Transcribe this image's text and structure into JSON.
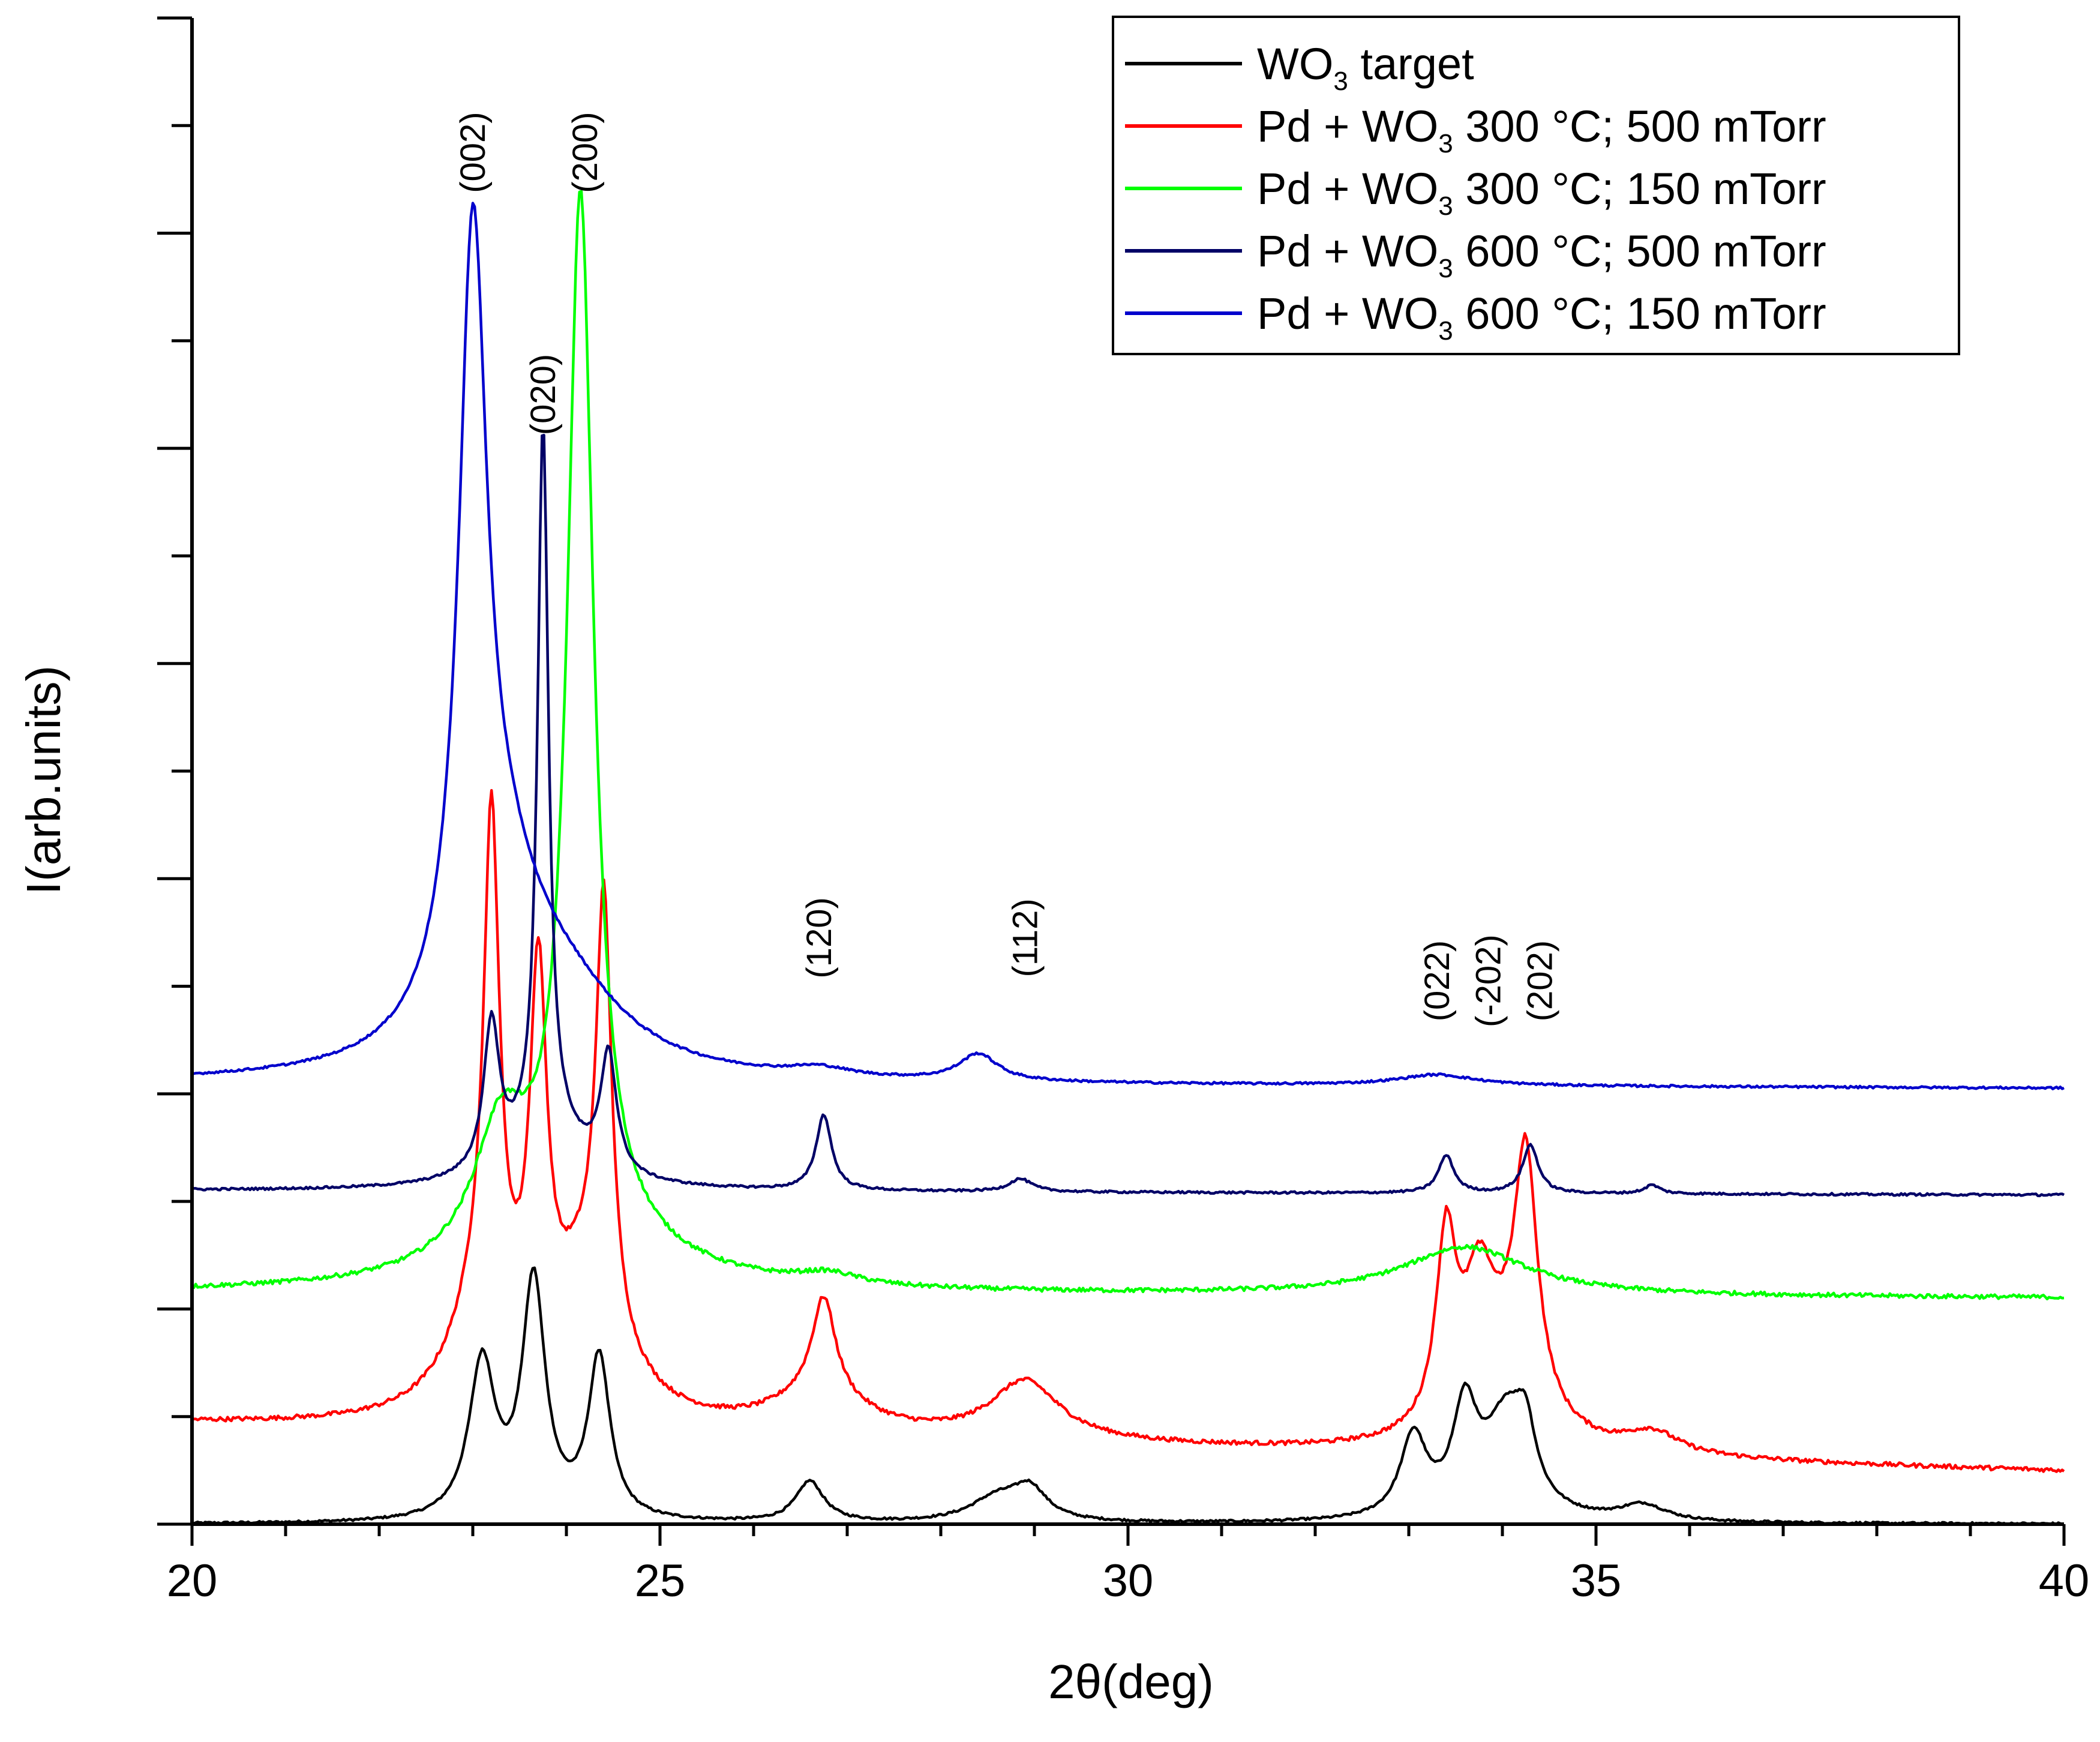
{
  "chart_data": {
    "type": "line",
    "title": "",
    "xlabel": "2θ(deg)",
    "ylabel": "I(arb.units)",
    "xlim": [
      20,
      40
    ],
    "ylim": [
      0,
      14
    ],
    "x_ticks": [
      "20",
      "25",
      "30",
      "35",
      "40"
    ],
    "y_ticks_labeled": false,
    "grid": false,
    "legend_position": "top-right",
    "series": [
      {
        "name": "WO3 target",
        "legend_parts": [
          "WO",
          "3",
          " target"
        ],
        "color": "#000000",
        "baseline": 0.0,
        "peaks": [
          {
            "x": 23.1,
            "h": 1.45,
            "w": 0.17
          },
          {
            "x": 23.65,
            "h": 2.2,
            "w": 0.15
          },
          {
            "x": 24.35,
            "h": 1.5,
            "w": 0.14
          },
          {
            "x": 26.6,
            "h": 0.38,
            "w": 0.18
          },
          {
            "x": 28.6,
            "h": 0.22,
            "w": 0.35
          },
          {
            "x": 28.95,
            "h": 0.28,
            "w": 0.22
          },
          {
            "x": 33.05,
            "h": 0.75,
            "w": 0.17
          },
          {
            "x": 33.6,
            "h": 0.95,
            "w": 0.16
          },
          {
            "x": 34.05,
            "h": 0.95,
            "w": 0.28
          },
          {
            "x": 34.25,
            "h": 0.5,
            "w": 0.12
          },
          {
            "x": 35.5,
            "h": 0.15,
            "w": 0.3
          }
        ]
      },
      {
        "name": "Pd + WO3 300 °C; 500 mTorr",
        "legend_parts": [
          "Pd + WO",
          "3",
          " 300 °C; 500 mTorr"
        ],
        "color": "#ff0000",
        "baseline": 0.93,
        "slope": -0.022,
        "peaks": [
          {
            "x": 23.2,
            "h": 4.6,
            "w": 0.1
          },
          {
            "x": 23.1,
            "h": 1.0,
            "w": 0.4
          },
          {
            "x": 23.7,
            "h": 3.5,
            "w": 0.11
          },
          {
            "x": 24.4,
            "h": 3.9,
            "w": 0.1
          },
          {
            "x": 24.2,
            "h": 1.2,
            "w": 0.45
          },
          {
            "x": 26.75,
            "h": 0.9,
            "w": 0.15
          },
          {
            "x": 26.7,
            "h": 0.35,
            "w": 0.6
          },
          {
            "x": 28.9,
            "h": 0.55,
            "w": 0.45
          },
          {
            "x": 33.4,
            "h": 1.7,
            "w": 0.13
          },
          {
            "x": 33.75,
            "h": 1.1,
            "w": 0.2
          },
          {
            "x": 34.25,
            "h": 2.3,
            "w": 0.15
          },
          {
            "x": 34.0,
            "h": 0.6,
            "w": 0.5
          },
          {
            "x": 35.6,
            "h": 0.2,
            "w": 0.35
          }
        ]
      },
      {
        "name": "Pd + WO3 300 °C; 150 mTorr",
        "legend_parts": [
          "Pd + WO",
          "3",
          " 300 °C; 150 mTorr"
        ],
        "color": "#00ff00",
        "baseline": 2.15,
        "slope": -0.0025,
        "peaks": [
          {
            "x": 24.15,
            "h": 9.6,
            "w": 0.17
          },
          {
            "x": 23.3,
            "h": 1.15,
            "w": 0.35
          },
          {
            "x": 24.1,
            "h": 0.5,
            "w": 1.1
          },
          {
            "x": 26.8,
            "h": 0.1,
            "w": 0.4
          },
          {
            "x": 33.6,
            "h": 0.45,
            "w": 0.8
          }
        ]
      },
      {
        "name": "Pd + WO3 600 °C; 500 mTorr",
        "legend_parts": [
          "Pd + WO",
          "3",
          " 600 °C; 500 mTorr"
        ],
        "color": "#000066",
        "baseline": 3.1,
        "slope": -0.002,
        "peaks": [
          {
            "x": 23.75,
            "h": 6.6,
            "w": 0.07
          },
          {
            "x": 23.2,
            "h": 1.35,
            "w": 0.1
          },
          {
            "x": 24.45,
            "h": 1.1,
            "w": 0.1
          },
          {
            "x": 23.8,
            "h": 0.5,
            "w": 0.5
          },
          {
            "x": 26.75,
            "h": 0.7,
            "w": 0.1
          },
          {
            "x": 28.85,
            "h": 0.12,
            "w": 0.15
          },
          {
            "x": 33.4,
            "h": 0.35,
            "w": 0.1
          },
          {
            "x": 34.3,
            "h": 0.45,
            "w": 0.1
          },
          {
            "x": 35.6,
            "h": 0.08,
            "w": 0.1
          }
        ]
      },
      {
        "name": "Pd + WO3 600 °C; 150 mTorr",
        "legend_parts": [
          "Pd + WO",
          "3",
          " 600 °C; 150 mTorr"
        ],
        "color": "#0000cc",
        "baseline": 4.1,
        "slope": -0.0025,
        "peaks": [
          {
            "x": 23.0,
            "h": 6.8,
            "w": 0.18
          },
          {
            "x": 23.3,
            "h": 1.5,
            "w": 0.55
          },
          {
            "x": 24.0,
            "h": 0.6,
            "w": 0.8
          },
          {
            "x": 26.7,
            "h": 0.08,
            "w": 0.4
          },
          {
            "x": 28.4,
            "h": 0.25,
            "w": 0.25
          },
          {
            "x": 33.3,
            "h": 0.1,
            "w": 0.5
          }
        ]
      }
    ],
    "annotations": [
      {
        "text": "(002)",
        "x": 23.0,
        "y": 12.75
      },
      {
        "text": "(200)",
        "x": 24.2,
        "y": 12.75
      },
      {
        "text": "(020)",
        "x": 23.75,
        "y": 10.5
      },
      {
        "text": "(120)",
        "x": 26.7,
        "y": 5.45
      },
      {
        "text": "(112)",
        "x": 28.9,
        "y": 5.45
      },
      {
        "text": "(022)",
        "x": 33.3,
        "y": 5.05
      },
      {
        "text": "(-202)",
        "x": 33.85,
        "y": 5.05
      },
      {
        "text": "(202)",
        "x": 34.4,
        "y": 5.05
      }
    ]
  }
}
